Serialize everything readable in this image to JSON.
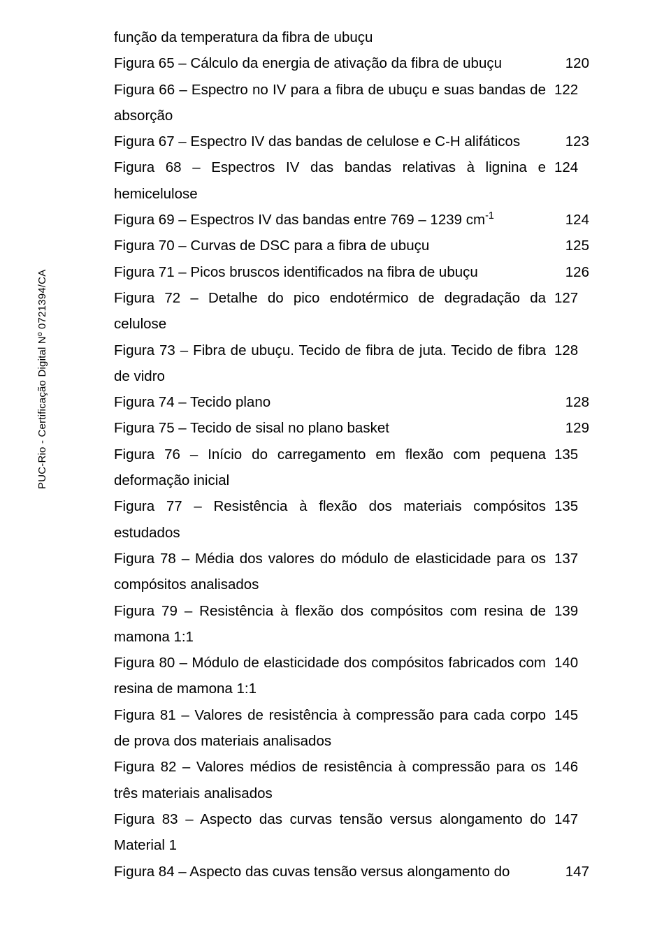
{
  "sideLabel": "PUC-Rio - Certificação Digital Nº 0721394/CA",
  "entries": [
    {
      "text": "função da temperatura da fibra de ubuçu",
      "page": "",
      "fullWidth": true
    },
    {
      "text": "Figura 65 – Cálculo da energia de ativação da fibra de ubuçu",
      "page": "120"
    },
    {
      "text": "Figura 66 – Espectro no IV para a fibra de ubuçu e suas bandas de absorção",
      "page": "122",
      "multi": true
    },
    {
      "text": "Figura 67 – Espectro IV das bandas de celulose e C-H alifáticos",
      "page": "123"
    },
    {
      "text": "Figura 68 – Espectros IV das bandas relativas à lignina e hemicelulose",
      "page": "124",
      "multi": true
    },
    {
      "text": "Figura 69 – Espectros IV das bandas entre 769 – 1239 cm",
      "page": "124",
      "sup": "-1"
    },
    {
      "text": "Figura 70 – Curvas de DSC para a fibra de ubuçu",
      "page": "125"
    },
    {
      "text": "Figura 71 – Picos bruscos identificados na fibra de ubuçu",
      "page": "126"
    },
    {
      "text": "Figura 72 – Detalhe do pico endotérmico de degradação da celulose",
      "page": "127",
      "multi": true
    },
    {
      "text": "Figura 73 – Fibra de ubuçu. Tecido de fibra de juta. Tecido de fibra de vidro",
      "page": "128",
      "multi": true
    },
    {
      "text": "Figura 74 – Tecido plano",
      "page": "128"
    },
    {
      "text": "Figura 75 – Tecido de sisal no plano basket",
      "page": "129"
    },
    {
      "text": "Figura 76 – Início do carregamento em flexão com pequena deformação inicial",
      "page": "135",
      "multi": true
    },
    {
      "text": "Figura 77 – Resistência à flexão dos materiais compósitos estudados",
      "page": "135",
      "multi": true
    },
    {
      "text": "Figura 78 – Média dos valores do módulo de elasticidade para os compósitos analisados",
      "page": "137",
      "multi": true
    },
    {
      "text": "Figura 79 – Resistência à flexão dos compósitos com resina de mamona 1:1",
      "page": "139",
      "multi": true
    },
    {
      "text": "Figura 80 – Módulo de elasticidade dos compósitos fabricados com resina de mamona 1:1",
      "page": "140",
      "multi": true
    },
    {
      "text": "Figura 81 – Valores de resistência à compressão para cada corpo de prova dos materiais analisados",
      "page": "145",
      "multi": true
    },
    {
      "text": "Figura 82 – Valores médios de resistência à compressão para os três materiais analisados",
      "page": "146",
      "multi": true
    },
    {
      "text": "Figura 83 – Aspecto das curvas tensão versus alongamento do Material 1",
      "page": "147",
      "multi": true
    },
    {
      "text": "Figura 84 – Aspecto das cuvas tensão versus alongamento do",
      "page": "147"
    }
  ]
}
